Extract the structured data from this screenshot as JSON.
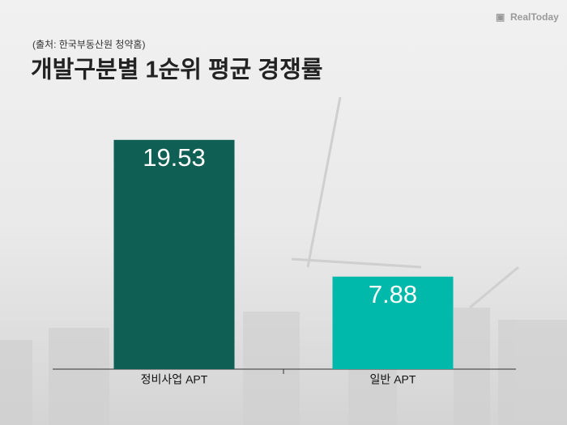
{
  "source": "(출처: 한국부동산원 청약홈)",
  "logo": "RealToday",
  "chart_data": {
    "type": "bar",
    "title": "개발구분별 1순위 평균 경쟁률",
    "categories": [
      "정비사업 APT",
      "일반 APT"
    ],
    "values": [
      19.53,
      7.88
    ],
    "colors": [
      "#0f5f54",
      "#00b9aa"
    ],
    "ylim": [
      0,
      20
    ]
  }
}
